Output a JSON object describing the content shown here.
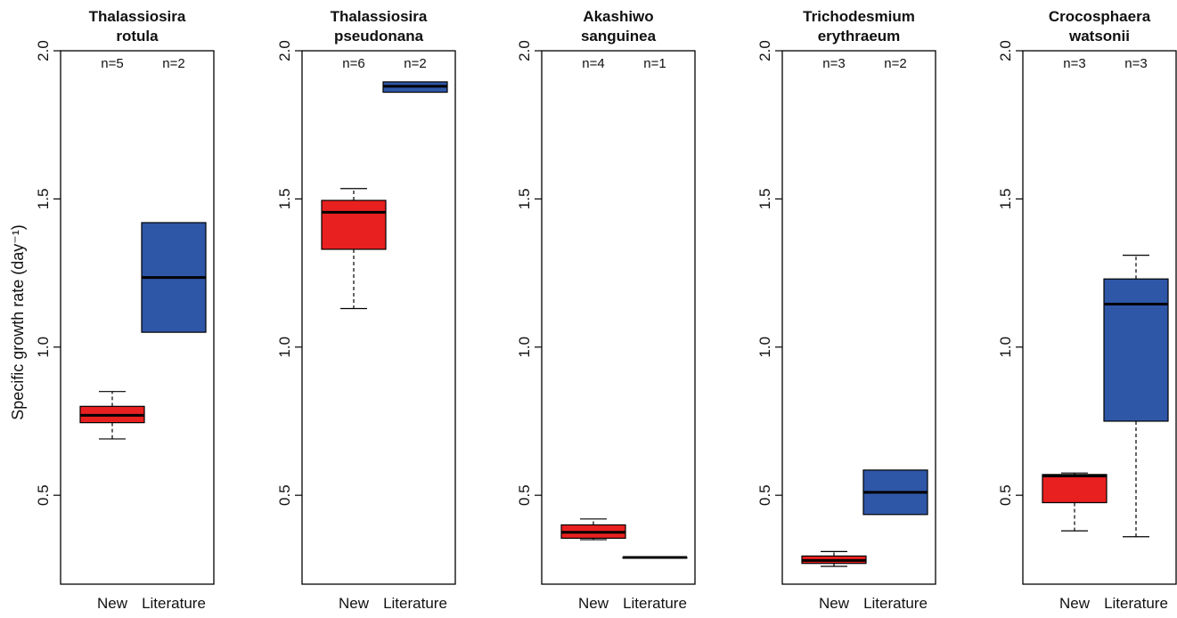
{
  "ylabel": "Specific growth rate (day⁻¹)",
  "colors": {
    "New": "#e8201f",
    "Literature": "#2f57a8"
  },
  "chart_data": [
    {
      "type": "box",
      "title_lines": [
        "Thalassiosira",
        "rotula"
      ],
      "categories": [
        "New",
        "Literature"
      ],
      "counts": [
        "n=5",
        "n=2"
      ],
      "ylim": [
        0.2,
        2.0
      ],
      "yticks": [
        "0.5",
        "1.0",
        "1.5",
        "2.0"
      ],
      "boxes": [
        {
          "category": "New",
          "min": 0.69,
          "q1": 0.745,
          "median": 0.77,
          "q3": 0.8,
          "max": 0.85
        },
        {
          "category": "Literature",
          "min": 1.05,
          "q1": 1.05,
          "median": 1.235,
          "q3": 1.42,
          "max": 1.42
        }
      ]
    },
    {
      "type": "box",
      "title_lines": [
        "Thalassiosira",
        "pseudonana"
      ],
      "categories": [
        "New",
        "Literature"
      ],
      "counts": [
        "n=6",
        "n=2"
      ],
      "ylim": [
        0.2,
        2.0
      ],
      "yticks": [
        "0.5",
        "1.0",
        "1.5",
        "2.0"
      ],
      "boxes": [
        {
          "category": "New",
          "min": 1.13,
          "q1": 1.33,
          "median": 1.455,
          "q3": 1.495,
          "max": 1.535
        },
        {
          "category": "Literature",
          "min": 1.86,
          "q1": 1.86,
          "median": 1.88,
          "q3": 1.895,
          "max": 1.895
        }
      ]
    },
    {
      "type": "box",
      "title_lines": [
        "Akashiwo",
        "sanguinea"
      ],
      "categories": [
        "New",
        "Literature"
      ],
      "counts": [
        "n=4",
        "n=1"
      ],
      "ylim": [
        0.2,
        2.0
      ],
      "yticks": [
        "0.5",
        "1.0",
        "1.5",
        "2.0"
      ],
      "boxes": [
        {
          "category": "New",
          "min": 0.35,
          "q1": 0.355,
          "median": 0.375,
          "q3": 0.4,
          "max": 0.42
        },
        {
          "category": "Literature",
          "min": 0.29,
          "q1": 0.29,
          "median": 0.29,
          "q3": 0.29,
          "max": 0.29
        }
      ]
    },
    {
      "type": "box",
      "title_lines": [
        "Trichodesmium",
        "erythraeum"
      ],
      "categories": [
        "New",
        "Literature"
      ],
      "counts": [
        "n=3",
        "n=2"
      ],
      "ylim": [
        0.2,
        2.0
      ],
      "yticks": [
        "0.5",
        "1.0",
        "1.5",
        "2.0"
      ],
      "boxes": [
        {
          "category": "New",
          "min": 0.26,
          "q1": 0.27,
          "median": 0.28,
          "q3": 0.295,
          "max": 0.31
        },
        {
          "category": "Literature",
          "min": 0.435,
          "q1": 0.435,
          "median": 0.51,
          "q3": 0.585,
          "max": 0.585
        }
      ]
    },
    {
      "type": "box",
      "title_lines": [
        "Crocosphaera",
        "watsonii"
      ],
      "categories": [
        "New",
        "Literature"
      ],
      "counts": [
        "n=3",
        "n=3"
      ],
      "ylim": [
        0.2,
        2.0
      ],
      "yticks": [
        "0.5",
        "1.0",
        "1.5",
        "2.0"
      ],
      "boxes": [
        {
          "category": "New",
          "min": 0.38,
          "q1": 0.475,
          "median": 0.565,
          "q3": 0.57,
          "max": 0.575
        },
        {
          "category": "Literature",
          "min": 0.36,
          "q1": 0.75,
          "median": 1.145,
          "q3": 1.23,
          "max": 1.31
        }
      ]
    }
  ]
}
